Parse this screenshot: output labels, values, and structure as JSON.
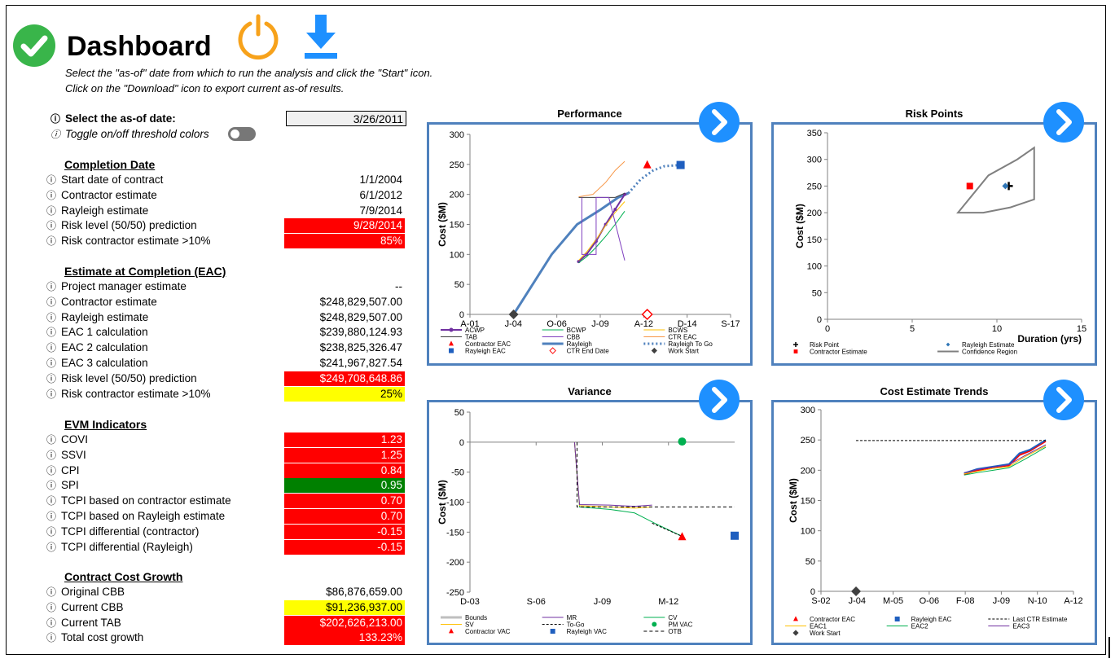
{
  "header": {
    "title": "Dashboard",
    "instruction_1": "Select the \"as-of\" date from which to run the analysis and click the \"Start\" icon.",
    "instruction_2": "Click on the \"Download\" icon to export current as-of results.",
    "icons": {
      "status": "check-circle-icon",
      "start": "power-icon",
      "download": "download-icon"
    }
  },
  "controls": {
    "asof_label": "Select the as-of date:",
    "asof_value": "3/26/2011",
    "toggle_label": "Toggle on/off threshold colors",
    "info_glyph": "ⓘ"
  },
  "completion": {
    "heading": "Completion Date",
    "rows": [
      {
        "label": "Start date of contract",
        "value": "1/1/2004",
        "status": ""
      },
      {
        "label": "Contractor estimate",
        "value": "6/1/2012",
        "status": ""
      },
      {
        "label": "Rayleigh estimate",
        "value": "7/9/2014",
        "status": ""
      },
      {
        "label": "Risk level (50/50) prediction",
        "value": "9/28/2014",
        "status": "red"
      },
      {
        "label": "Risk contractor estimate >10%",
        "value": "85%",
        "status": "red"
      }
    ]
  },
  "eac": {
    "heading": "Estimate at Completion (EAC)",
    "rows": [
      {
        "label": "Project manager estimate",
        "value": "--",
        "status": ""
      },
      {
        "label": "Contractor estimate",
        "value": "$248,829,507.00",
        "status": ""
      },
      {
        "label": "Rayleigh estimate",
        "value": "$248,829,507.00",
        "status": ""
      },
      {
        "label": "EAC 1 calculation",
        "value": "$239,880,124.93",
        "status": ""
      },
      {
        "label": "EAC 2 calculation",
        "value": "$238,825,326.47",
        "status": ""
      },
      {
        "label": "EAC 3 calculation",
        "value": "$241,967,827.54",
        "status": ""
      },
      {
        "label": "Risk level (50/50) prediction",
        "value": "$249,708,648.86",
        "status": "red"
      },
      {
        "label": "Risk contractor estimate >10%",
        "value": "25%",
        "status": "yel"
      }
    ]
  },
  "evm": {
    "heading": "EVM Indicators",
    "rows": [
      {
        "label": "COVI",
        "value": "1.23",
        "status": "red"
      },
      {
        "label": "SSVI",
        "value": "1.25",
        "status": "red"
      },
      {
        "label": "CPI",
        "value": "0.84",
        "status": "red"
      },
      {
        "label": "SPI",
        "value": "0.95",
        "status": "grn"
      },
      {
        "label": "TCPI based on contractor estimate",
        "value": "0.70",
        "status": "red"
      },
      {
        "label": "TCPI based on Rayleigh estimate",
        "value": "0.70",
        "status": "red"
      },
      {
        "label": "TCPI differential (contractor)",
        "value": "-0.15",
        "status": "red"
      },
      {
        "label": "TCPI differential (Rayleigh)",
        "value": "-0.15",
        "status": "red"
      }
    ]
  },
  "growth": {
    "heading": "Contract Cost Growth",
    "rows": [
      {
        "label": "Original CBB",
        "value": "$86,876,659.00",
        "status": ""
      },
      {
        "label": "Current CBB",
        "value": "$91,236,937.00",
        "status": "yel"
      },
      {
        "label": "Current TAB",
        "value": "$202,626,213.00",
        "status": "red"
      },
      {
        "label": "Total cost growth",
        "value": "133.23%",
        "status": "red"
      }
    ]
  },
  "colors": {
    "red": "#ff0000",
    "yellow": "#ffff00",
    "green": "#008000",
    "panel_border": "#4f81bd",
    "button": "#1e90ff"
  },
  "chart_data": [
    {
      "type": "line",
      "title": "Performance",
      "ylabel": "Cost ($M)",
      "ylim": [
        0,
        300
      ],
      "yticks": [
        "0",
        "50",
        "100",
        "150",
        "200",
        "250",
        "300"
      ],
      "xticks": [
        "A-01",
        "J-04",
        "O-06",
        "J-09",
        "A-12",
        "D-14",
        "S-17"
      ],
      "xlim": [
        2001.25,
        2017.67
      ],
      "legend_placement": "bottom",
      "legend": [
        "ACWP",
        "BCWP",
        "BCWS",
        "TAB",
        "CBB",
        "CTR EAC",
        "Contractor EAC",
        "Rayleigh",
        "Rayleigh To Go",
        "Rayleigh EAC",
        "CTR End Date",
        "Work Start"
      ],
      "series": [
        {
          "name": "Rayleigh",
          "x": [
            2004.0,
            2006.4,
            2008.0,
            2009.5,
            2010.6,
            2011.23
          ],
          "y": [
            0,
            100,
            150,
            175,
            195,
            202
          ]
        },
        {
          "name": "Rayleigh To Go",
          "x": [
            2011.23,
            2012.0,
            2012.8,
            2013.5,
            2014.52
          ],
          "y": [
            202,
            225,
            240,
            247,
            249
          ]
        },
        {
          "name": "ACWP",
          "x": [
            2008.1,
            2008.6,
            2009.2,
            2009.8,
            2010.4,
            2011.0
          ],
          "y": [
            88,
            100,
            122,
            150,
            175,
            200
          ]
        },
        {
          "name": "BCWP",
          "x": [
            2008.1,
            2008.6,
            2009.2,
            2009.8,
            2010.4,
            2011.0
          ],
          "y": [
            86,
            96,
            112,
            130,
            150,
            172
          ]
        },
        {
          "name": "BCWS",
          "x": [
            2008.1,
            2008.6,
            2009.2,
            2009.8,
            2010.4,
            2011.0
          ],
          "y": [
            90,
            104,
            125,
            148,
            170,
            188
          ]
        },
        {
          "name": "TAB",
          "x": [
            2008.1,
            2010.4,
            2011.0
          ],
          "y": [
            195,
            195,
            202
          ]
        },
        {
          "name": "CBB",
          "x": [
            2008.3,
            2008.3,
            2009.2,
            2009.2,
            2010.0,
            2011.0
          ],
          "y": [
            195,
            100,
            100,
            195,
            195,
            90
          ]
        },
        {
          "name": "CTR EAC",
          "x": [
            2008.1,
            2009.0,
            2009.8,
            2010.4,
            2011.0
          ],
          "y": [
            196,
            200,
            220,
            240,
            255
          ]
        }
      ],
      "points": [
        {
          "name": "Contractor EAC",
          "x": 2012.42,
          "y": 249
        },
        {
          "name": "Rayleigh EAC",
          "x": 2014.52,
          "y": 249
        },
        {
          "name": "CTR End Date",
          "x": 2012.42,
          "y": 0
        },
        {
          "name": "Work Start",
          "x": 2004.0,
          "y": 0
        }
      ]
    },
    {
      "type": "scatter",
      "title": "Risk Points",
      "ylabel": "Cost ($M)",
      "xlabel": "Duration (yrs)",
      "xlim": [
        0,
        15
      ],
      "ylim": [
        0,
        350
      ],
      "xticks": [
        "0",
        "5",
        "10",
        "15"
      ],
      "yticks": [
        "0",
        "50",
        "100",
        "150",
        "200",
        "250",
        "300",
        "350"
      ],
      "legend": [
        "Risk Point",
        "Rayleigh Estimate",
        "Contractor Estimate",
        "Confidence Region"
      ],
      "points": [
        {
          "name": "Risk Point",
          "x": 10.7,
          "y": 250
        },
        {
          "name": "Rayleigh Estimate",
          "x": 10.5,
          "y": 250
        },
        {
          "name": "Contractor Estimate",
          "x": 8.4,
          "y": 250
        }
      ],
      "region": {
        "name": "Confidence Region",
        "x": [
          7.7,
          9.2,
          10.8,
          12.2,
          12.2,
          11.2,
          9.5,
          7.7
        ],
        "y": [
          200,
          200,
          210,
          225,
          322,
          300,
          270,
          200
        ]
      }
    },
    {
      "type": "line",
      "title": "Variance",
      "ylabel": "Cost ($M)",
      "ylim": [
        -250,
        50
      ],
      "yticks": [
        "-250",
        "-200",
        "-150",
        "-100",
        "-50",
        "0",
        "50"
      ],
      "xticks": [
        "D-03",
        "S-06",
        "J-09",
        "M-12"
      ],
      "xlim": [
        2003.92,
        2014.5
      ],
      "legend_placement": "bottom",
      "legend": [
        "Bounds",
        "MR",
        "CV",
        "SV",
        "To-Go",
        "PM VAC",
        "Contractor VAC",
        "Rayleigh VAC",
        "OTB"
      ],
      "series": [
        {
          "name": "CV",
          "x": [
            2008.1,
            2008.3,
            2009.5,
            2010.5,
            2011.3,
            2012.4
          ],
          "y": [
            0,
            -108,
            -112,
            -118,
            -135,
            -157
          ]
        },
        {
          "name": "SV",
          "x": [
            2008.1,
            2008.3,
            2009.5,
            2010.5,
            2011.2
          ],
          "y": [
            0,
            -106,
            -108,
            -110,
            -108
          ]
        },
        {
          "name": "MR",
          "x": [
            2008.1,
            2008.3,
            2009.5,
            2010.5,
            2011.2
          ],
          "y": [
            0,
            -104,
            -105,
            -107,
            -105
          ]
        },
        {
          "name": "To-Go",
          "x": [
            2011.2,
            2012.4
          ],
          "y": [
            -135,
            -157
          ]
        },
        {
          "name": "OTB",
          "x": [
            2008.2,
            2008.2,
            2014.5
          ],
          "y": [
            0,
            -108,
            -108
          ]
        }
      ],
      "points": [
        {
          "name": "PM VAC",
          "x": 2012.4,
          "y": 1
        },
        {
          "name": "Contractor VAC",
          "x": 2012.4,
          "y": -158
        },
        {
          "name": "Rayleigh VAC",
          "x": 2014.5,
          "y": -156
        }
      ]
    },
    {
      "type": "line",
      "title": "Cost Estimate Trends",
      "ylabel": "Cost ($M)",
      "ylim": [
        0,
        300
      ],
      "yticks": [
        "0",
        "50",
        "100",
        "150",
        "200",
        "250",
        "300"
      ],
      "xticks": [
        "S-02",
        "J-04",
        "M-05",
        "O-06",
        "F-08",
        "J-09",
        "N-10",
        "A-12"
      ],
      "xlim": [
        2002.67,
        2012.25
      ],
      "legend_placement": "bottom",
      "legend": [
        "Contractor EAC",
        "Rayleigh EAC",
        "Last CTR Estimate",
        "EAC1",
        "EAC2",
        "EAC3",
        "Work Start"
      ],
      "series": [
        {
          "name": "Contractor EAC",
          "x": [
            2008.1,
            2008.6,
            2009.2,
            2009.8,
            2010.2,
            2010.6,
            2011.2
          ],
          "y": [
            193,
            200,
            205,
            208,
            225,
            232,
            248
          ]
        },
        {
          "name": "Rayleigh EAC",
          "x": [
            2008.1,
            2008.6,
            2009.2,
            2009.8,
            2010.2,
            2010.6,
            2011.2
          ],
          "y": [
            195,
            202,
            206,
            210,
            228,
            234,
            250
          ]
        },
        {
          "name": "Last CTR Estimate",
          "x": [
            2004.0,
            2011.2
          ],
          "y": [
            249,
            249
          ]
        },
        {
          "name": "EAC1",
          "x": [
            2008.1,
            2008.6,
            2009.2,
            2009.8,
            2010.4,
            2011.2
          ],
          "y": [
            194,
            198,
            203,
            206,
            222,
            240
          ]
        },
        {
          "name": "EAC2",
          "x": [
            2008.1,
            2008.6,
            2009.2,
            2009.8,
            2010.4,
            2011.2
          ],
          "y": [
            192,
            196,
            200,
            204,
            218,
            238
          ]
        },
        {
          "name": "EAC3",
          "x": [
            2008.1,
            2008.6,
            2009.2,
            2009.8,
            2010.4,
            2011.2
          ],
          "y": [
            196,
            201,
            205,
            209,
            224,
            242
          ]
        }
      ],
      "points": [
        {
          "name": "Work Start",
          "x": 2004.0,
          "y": 0
        }
      ]
    }
  ]
}
